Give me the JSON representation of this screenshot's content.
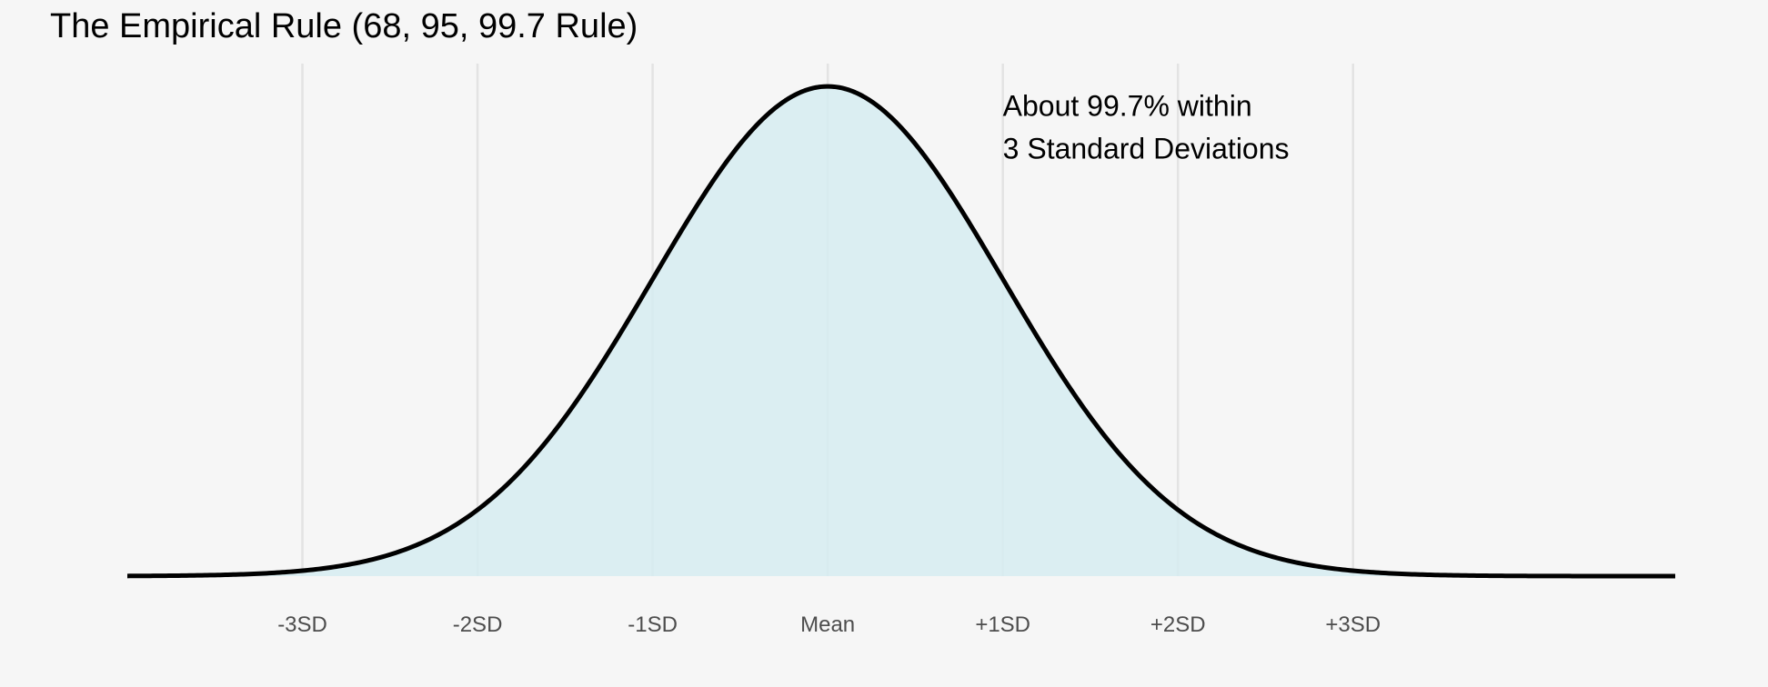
{
  "chart_data": {
    "type": "area",
    "title": "The Empirical Rule (68, 95, 99.7 Rule)",
    "xlabel": "",
    "ylabel": "",
    "distribution": "normal",
    "mean": 0,
    "sd": 1,
    "xlim": [
      -4,
      4.84
    ],
    "ylim": [
      0,
      0.399
    ],
    "shaded_range": [
      -4,
      4
    ],
    "tick_values": [
      -3,
      -2,
      -1,
      0,
      1,
      2,
      3
    ],
    "tick_labels": [
      "-3SD",
      "-2SD",
      "-1SD",
      "Mean",
      "+1SD",
      "+2SD",
      "+3SD"
    ],
    "grid": "vertical lines at each tick",
    "annotation": {
      "lines": [
        "About 99.7% within",
        "3 Standard Deviations"
      ],
      "x": 1.0,
      "y": 0.375
    },
    "colors": {
      "fill": "#d6ecf1",
      "curve": "#000000",
      "grid": "#e3e3e3",
      "background": "#f6f6f6",
      "tick_text": "#4d4d4d"
    }
  }
}
